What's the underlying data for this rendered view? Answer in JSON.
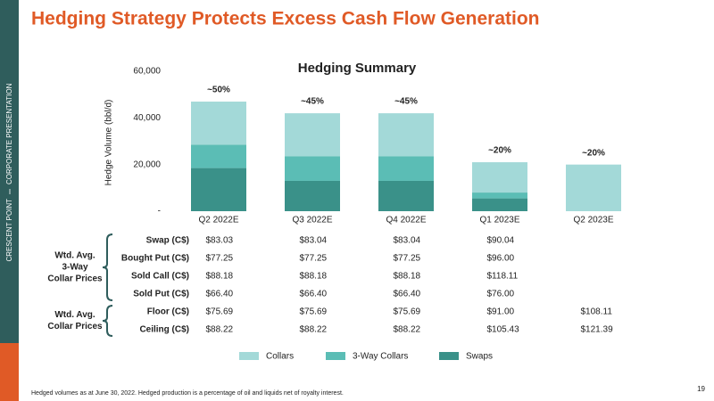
{
  "slide_title": "Hedging Strategy Protects Excess Cash Flow Generation",
  "sidebar": [
    "CRESCENT POINT",
    "CORPORATE PRESENTATION"
  ],
  "chart_data": {
    "type": "bar",
    "stacked": true,
    "title": "Hedging Summary",
    "y_label": "Hedge Volume (bbl/d)",
    "categories": [
      "Q2 2022E",
      "Q3 2022E",
      "Q4 2022E",
      "Q1 2023E",
      "Q2 2023E"
    ],
    "bar_labels": [
      "~50%",
      "~45%",
      "~45%",
      "~20%",
      "~20%"
    ],
    "series": [
      {
        "name": "Collars",
        "color": "#a3d9d8",
        "values": [
          18500,
          18500,
          18500,
          13000,
          20000
        ]
      },
      {
        "name": "3-Way Collars",
        "color": "#5bbdb5",
        "values": [
          10000,
          10500,
          10500,
          2500,
          0
        ]
      },
      {
        "name": "Swaps",
        "color": "#3a9189",
        "values": [
          18500,
          13000,
          13000,
          5500,
          0
        ]
      }
    ],
    "ylim": [
      0,
      60000
    ],
    "yticks": [
      {
        "value": 0,
        "label": "-"
      },
      {
        "value": 20000,
        "label": "20,000"
      },
      {
        "value": 40000,
        "label": "40,000"
      },
      {
        "value": 60000,
        "label": "60,000"
      }
    ],
    "grid": false,
    "legend": "bottom"
  },
  "table": {
    "groups": [
      {
        "label": [
          "Wtd. Avg.",
          "3-Way",
          "Collar Prices"
        ],
        "rows": [
          {
            "label": "Swap (C$)",
            "values": [
              "$83.03",
              "$83.04",
              "$83.04",
              "$90.04",
              null
            ]
          },
          {
            "label": "Bought Put (C$)",
            "values": [
              "$77.25",
              "$77.25",
              "$77.25",
              "$96.00",
              null
            ]
          },
          {
            "label": "Sold Call (C$)",
            "values": [
              "$88.18",
              "$88.18",
              "$88.18",
              "$118.11",
              null
            ]
          },
          {
            "label": "Sold Put (C$)",
            "values": [
              "$66.40",
              "$66.40",
              "$66.40",
              "$76.00",
              null
            ]
          }
        ]
      },
      {
        "label": [
          "Wtd. Avg.",
          "Collar Prices"
        ],
        "rows": [
          {
            "label": "Floor (C$)",
            "values": [
              "$75.69",
              "$75.69",
              "$75.69",
              "$91.00",
              "$108.11"
            ]
          },
          {
            "label": "Ceiling (C$)",
            "values": [
              "$88.22",
              "$88.22",
              "$88.22",
              "$105.43",
              "$121.39"
            ]
          }
        ]
      }
    ]
  },
  "footnote": "Hedged volumes as at June 30, 2022. Hedged production is a percentage of oil and liquids net of royalty interest.",
  "page_number": "19"
}
